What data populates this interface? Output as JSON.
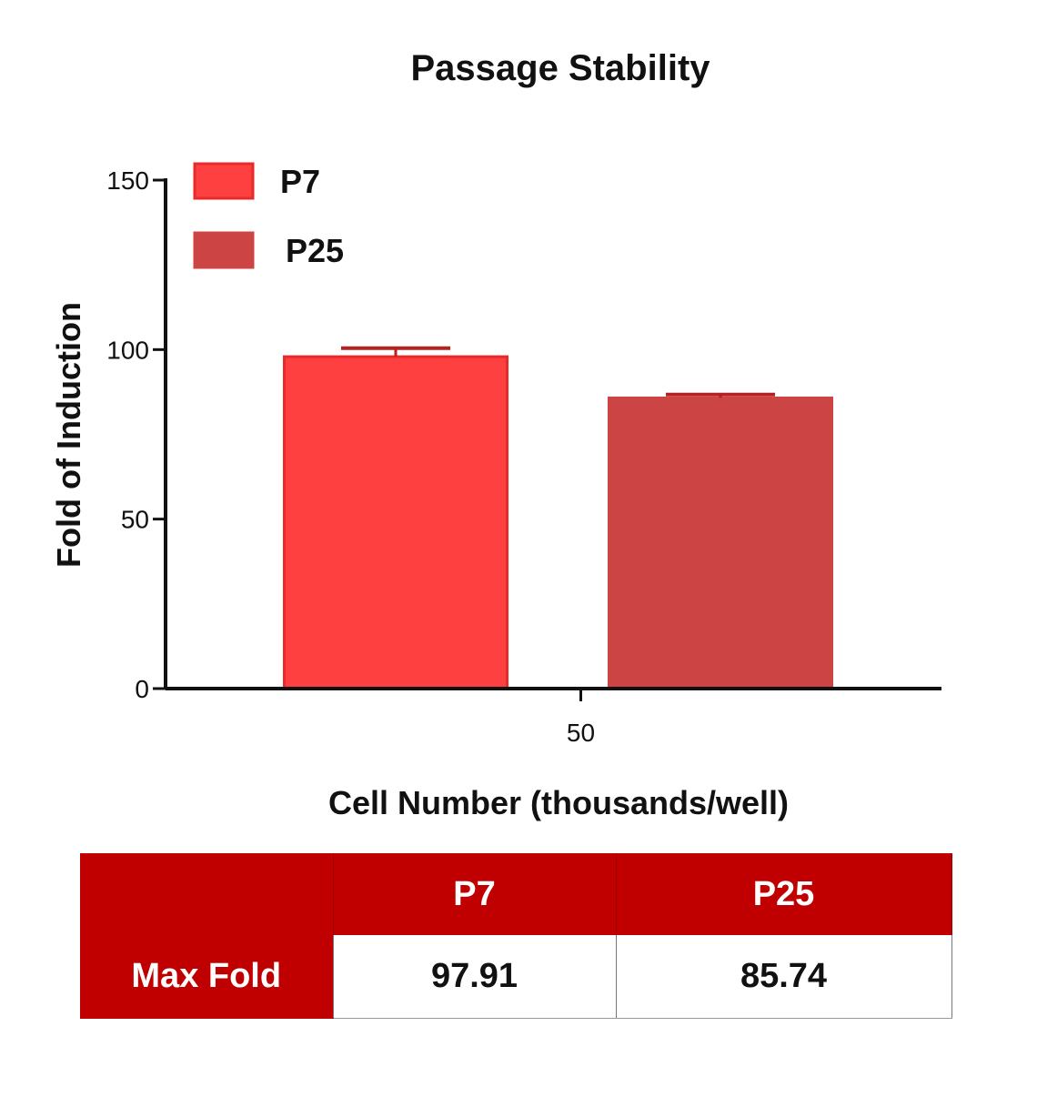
{
  "chart_data": {
    "type": "bar",
    "title": "Passage Stability",
    "xlabel": "Cell Number (thousands/well)",
    "ylabel": "Fold of Induction",
    "categories": [
      "50"
    ],
    "ylim": [
      0,
      150
    ],
    "yticks": [
      0,
      50,
      100,
      150
    ],
    "series": [
      {
        "name": "P7",
        "values": [
          97.91
        ],
        "error": [
          2.5
        ],
        "color": "#ff4040"
      },
      {
        "name": "P25",
        "values": [
          85.74
        ],
        "error": [
          1.0
        ],
        "color": "#cc4444"
      }
    ],
    "legend_position": "top-left",
    "grid": false
  },
  "table": {
    "columns": [
      "",
      "P7",
      "P25"
    ],
    "rows": [
      {
        "label": "Max Fold",
        "values": [
          "97.91",
          "85.74"
        ]
      }
    ],
    "header_color": "#c00000"
  }
}
